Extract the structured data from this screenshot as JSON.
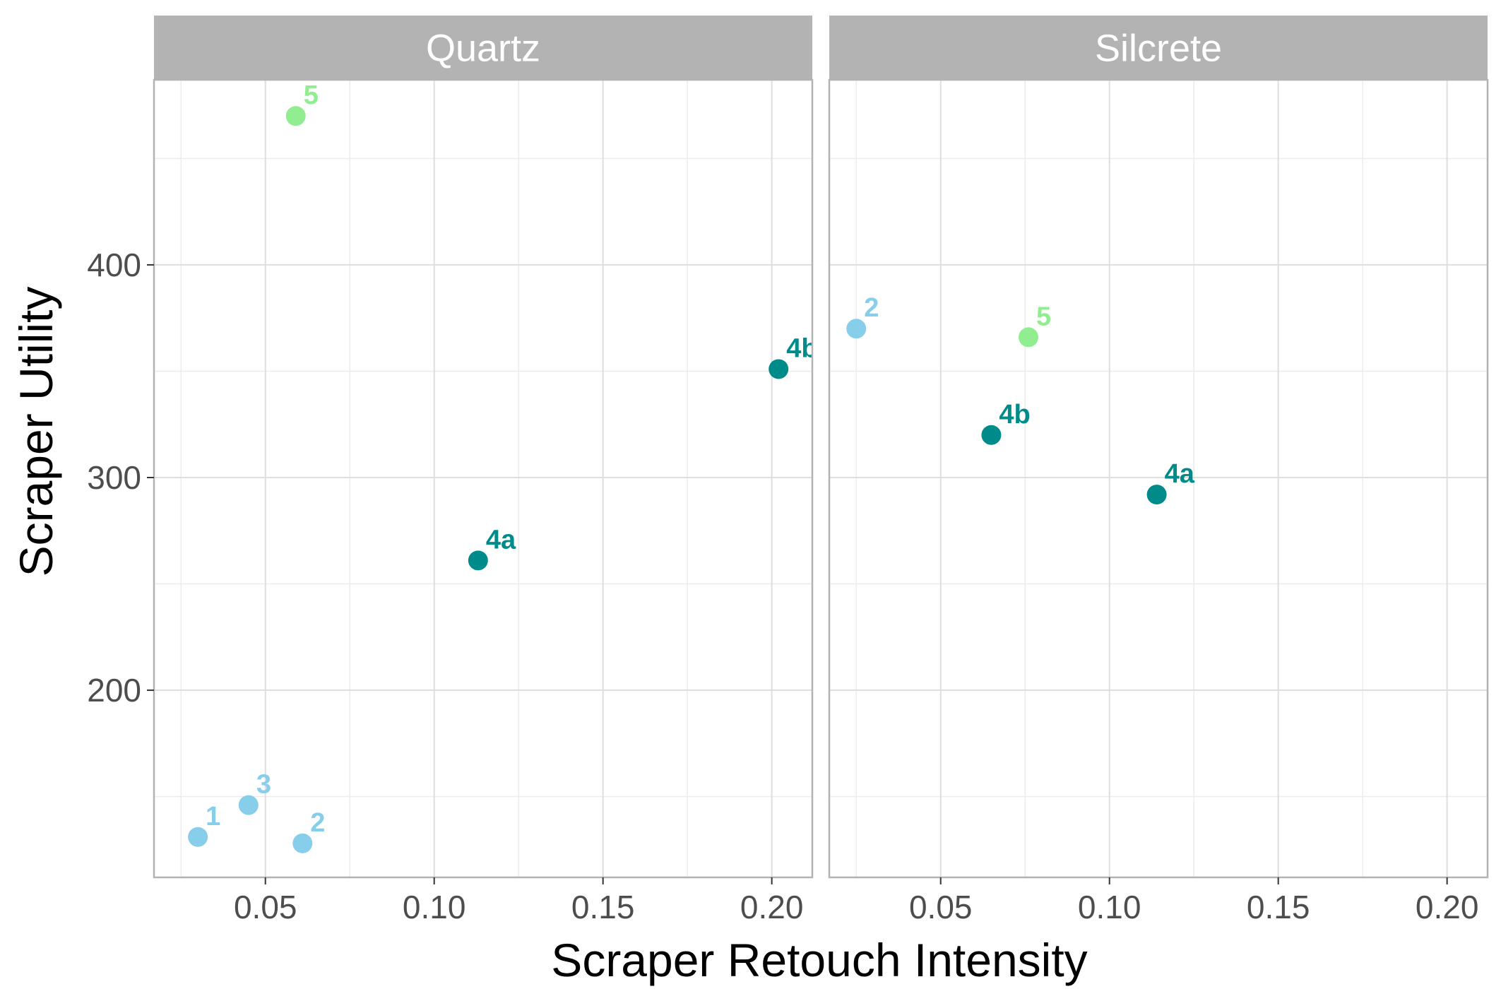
{
  "chart_data": {
    "type": "scatter",
    "xlabel": "Scraper Retouch Intensity",
    "ylabel": "Scraper Utility",
    "xlim": [
      0.017,
      0.212
    ],
    "ylim": [
      112,
      487
    ],
    "x_ticks": [
      0.05,
      0.1,
      0.15,
      0.2
    ],
    "x_tick_labels": [
      "0.05",
      "0.10",
      "0.15",
      "0.20"
    ],
    "y_ticks": [
      200,
      300,
      400
    ],
    "y_tick_labels": [
      "200",
      "300",
      "400"
    ],
    "grid": true,
    "legend": "none",
    "colors": {
      "1": "#87ceeb",
      "2": "#87ceeb",
      "3": "#87ceeb",
      "4a": "#008b8b",
      "4b": "#008b8b",
      "5": "#90ee90",
      "strip_bg": "#b3b3b3",
      "panel_border": "#b3b3b3",
      "grid_major": "#dedede",
      "grid_minor": "#ececec"
    },
    "panels": [
      {
        "name": "Quartz",
        "points": [
          {
            "label": "1",
            "x": 0.03,
            "y": 131
          },
          {
            "label": "3",
            "x": 0.045,
            "y": 146
          },
          {
            "label": "2",
            "x": 0.061,
            "y": 128
          },
          {
            "label": "5",
            "x": 0.059,
            "y": 470
          },
          {
            "label": "4a",
            "x": 0.113,
            "y": 261
          },
          {
            "label": "4b",
            "x": 0.202,
            "y": 351
          }
        ]
      },
      {
        "name": "Silcrete",
        "points": [
          {
            "label": "2",
            "x": 0.025,
            "y": 370
          },
          {
            "label": "5",
            "x": 0.076,
            "y": 366
          },
          {
            "label": "4b",
            "x": 0.065,
            "y": 320
          },
          {
            "label": "4a",
            "x": 0.114,
            "y": 292
          }
        ]
      }
    ]
  }
}
